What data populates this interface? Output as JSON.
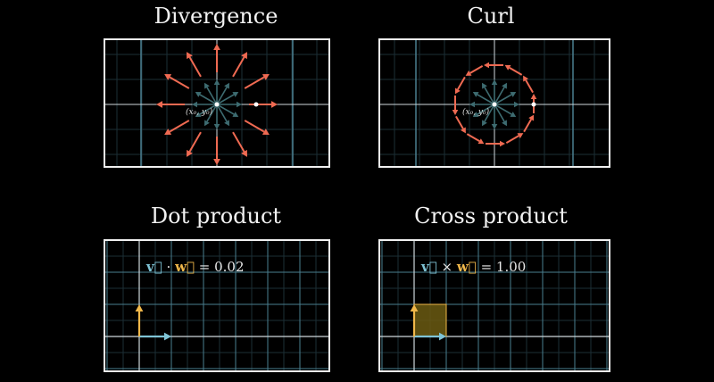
{
  "panels": {
    "divergence": {
      "title": "Divergence",
      "point_label": "(x₀, y₀)"
    },
    "curl": {
      "title": "Curl",
      "point_label": "(x₀, y₀)"
    },
    "dot": {
      "title": "Dot product",
      "formula": {
        "v": "v⃗",
        "op": "·",
        "w": "w⃗",
        "eq": "=",
        "value": "0.02"
      }
    },
    "cross": {
      "title": "Cross product",
      "formula": {
        "v": "v⃗",
        "op": "×",
        "w": "w⃗",
        "eq": "=",
        "value": "1.00"
      }
    }
  },
  "colors": {
    "background": "#000000",
    "frame": "#f0f0f0",
    "grid_major": "#4a7f8f",
    "grid_minor": "#1c2f36",
    "axis": "#cfd8dc",
    "field_arrow": "#3d6b70",
    "red_arrow": "#ef6a52",
    "v_vector": "#7fc4d6",
    "w_vector": "#f1b84a",
    "parallelogram": "#6b5a12"
  }
}
